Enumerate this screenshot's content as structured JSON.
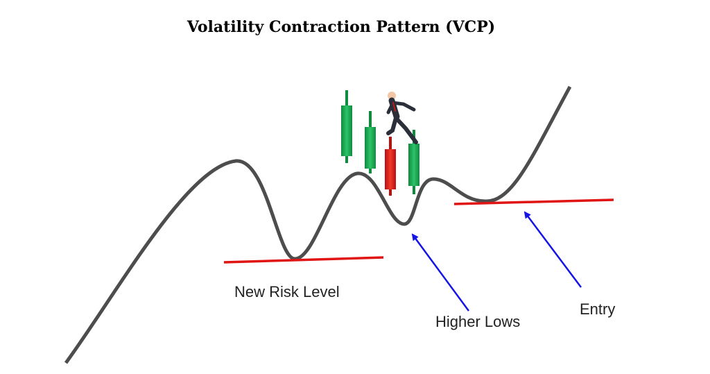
{
  "title": "Volatility Contraction Pattern (VCP)",
  "annotations": [
    {
      "label": "New Risk Level"
    },
    {
      "label": "Higher Lows"
    },
    {
      "label": "Entry"
    }
  ]
}
